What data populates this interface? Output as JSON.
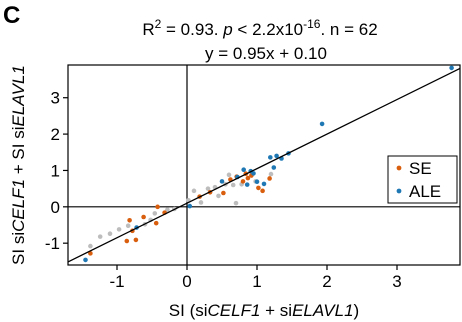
{
  "panel_label": "C",
  "stats": {
    "r2_prefix": "R",
    "r2_exp": "2",
    "r2_value": " = 0.93. ",
    "p_label": "p",
    "p_prefix": " < 2.2x10",
    "p_exp": "-16",
    "n_text": ". n = 62",
    "regression": "y = 0.95x + 0.10"
  },
  "axes": {
    "xlabel": {
      "pre": "SI (si",
      "gene1": "CELF1",
      "mid": " + si",
      "gene2": "ELAVL1",
      "post": ")"
    },
    "ylabel": {
      "pre": "SI si",
      "gene1": "CELF1",
      "mid": " + SI si",
      "gene2": "ELAVL1",
      "post": ""
    }
  },
  "legend": [
    {
      "name": "SE",
      "color": "#d95f0e"
    },
    {
      "name": "ALE",
      "color": "#1f78b4"
    }
  ],
  "chart_data": {
    "type": "scatter",
    "xlim": [
      -1.7,
      3.9
    ],
    "ylim": [
      -1.6,
      3.9
    ],
    "x_ticks": [
      -1,
      0,
      1,
      2,
      3
    ],
    "x_tick_labels": [
      "-1",
      "0",
      "1",
      "2",
      "3"
    ],
    "y_ticks": [
      -1,
      0,
      1,
      2,
      3
    ],
    "y_tick_labels": [
      "-1",
      "0",
      "1",
      "2",
      "3"
    ],
    "reference_lines": {
      "x0": true,
      "y0": true
    },
    "fit": {
      "slope": 0.95,
      "intercept": 0.1
    },
    "legend_position": "right",
    "grid": false,
    "colors": {
      "SE": "#d95f0e",
      "ALE": "#1f78b4",
      "other": "#bdbdbd"
    },
    "series": [
      {
        "name": "SE",
        "points": [
          [
            -1.38,
            -1.28
          ],
          [
            -0.86,
            -0.94
          ],
          [
            -0.73,
            -0.91
          ],
          [
            -0.78,
            -0.66
          ],
          [
            -0.82,
            -0.37
          ],
          [
            -0.62,
            -0.28
          ],
          [
            -0.44,
            -0.45
          ],
          [
            -0.42,
            0.0
          ],
          [
            -0.32,
            -0.16
          ],
          [
            0.18,
            0.28
          ],
          [
            0.33,
            0.4
          ],
          [
            0.52,
            0.38
          ],
          [
            0.62,
            0.75
          ],
          [
            0.71,
            0.83
          ],
          [
            0.8,
            0.7
          ],
          [
            0.84,
            0.91
          ],
          [
            0.87,
            0.79
          ],
          [
            0.92,
            0.86
          ],
          [
            1.02,
            0.52
          ],
          [
            1.08,
            0.44
          ],
          [
            1.18,
            0.78
          ]
        ]
      },
      {
        "name": "ALE",
        "points": [
          [
            -1.45,
            -1.46
          ],
          [
            -0.72,
            -0.57
          ],
          [
            0.04,
            0.02
          ],
          [
            0.5,
            0.7
          ],
          [
            0.72,
            0.82
          ],
          [
            0.81,
            1.02
          ],
          [
            0.86,
            0.61
          ],
          [
            0.91,
            0.98
          ],
          [
            0.95,
            0.92
          ],
          [
            1.0,
            0.69
          ],
          [
            1.1,
            0.63
          ],
          [
            1.19,
            1.36
          ],
          [
            1.24,
            1.08
          ],
          [
            1.28,
            1.4
          ],
          [
            1.35,
            1.33
          ],
          [
            1.45,
            1.47
          ],
          [
            1.93,
            2.28
          ],
          [
            3.78,
            3.82
          ]
        ]
      },
      {
        "name": "",
        "points": [
          [
            -1.38,
            -1.08
          ],
          [
            -1.24,
            -0.82
          ],
          [
            -1.1,
            -0.74
          ],
          [
            -0.97,
            -0.62
          ],
          [
            -0.84,
            -0.52
          ],
          [
            -0.6,
            -0.48
          ],
          [
            -0.52,
            -0.36
          ],
          [
            -0.46,
            -0.18
          ],
          [
            -0.28,
            -0.08
          ],
          [
            -0.18,
            -0.06
          ],
          [
            0.02,
            0.18
          ],
          [
            0.1,
            0.44
          ],
          [
            0.2,
            0.12
          ],
          [
            0.3,
            0.5
          ],
          [
            0.4,
            0.54
          ],
          [
            0.45,
            0.3
          ],
          [
            0.55,
            0.62
          ],
          [
            0.6,
            0.88
          ],
          [
            0.7,
            0.1
          ],
          [
            0.78,
            0.62
          ],
          [
            0.98,
            0.7
          ],
          [
            1.2,
            0.9
          ],
          [
            0.66,
            0.6
          ]
        ]
      }
    ]
  }
}
